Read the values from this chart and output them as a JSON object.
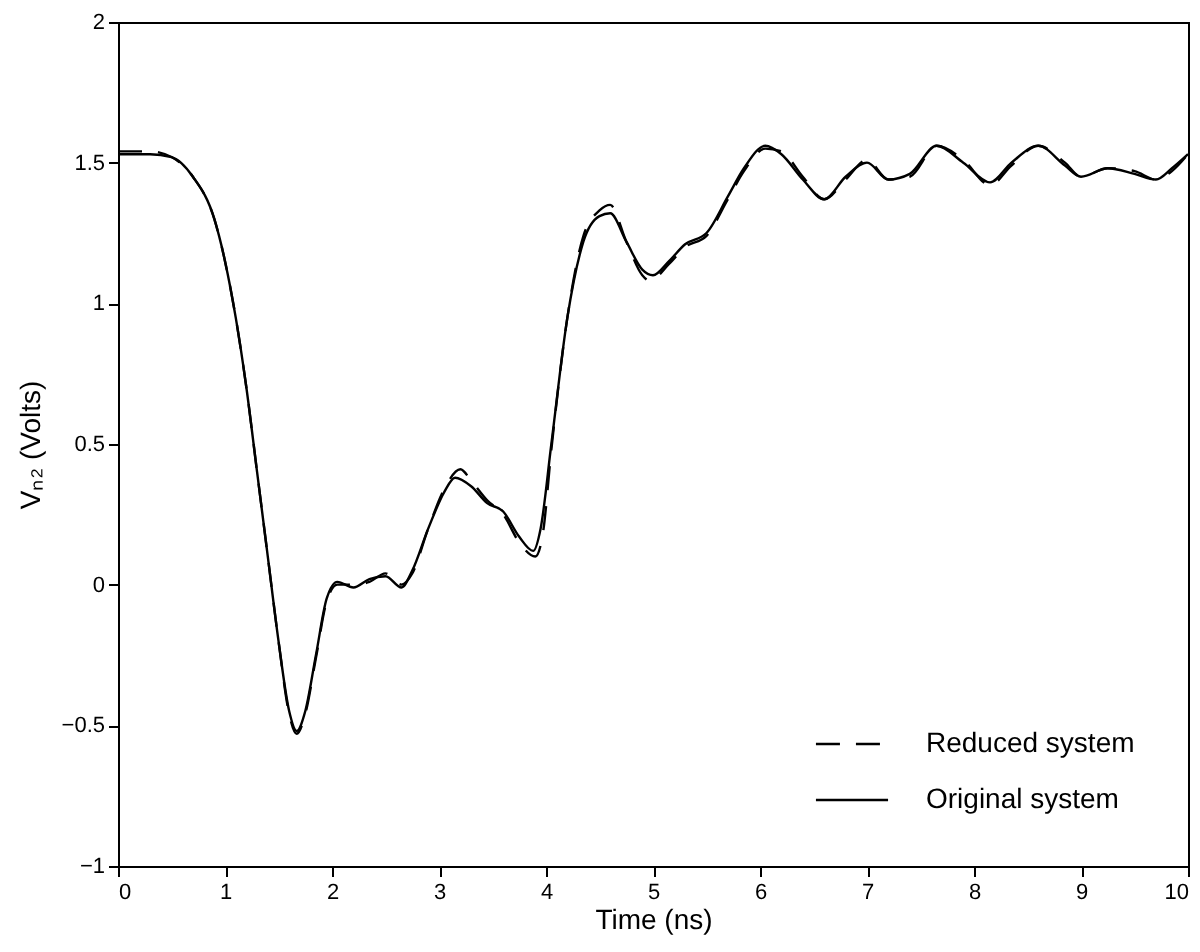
{
  "chart_data": {
    "type": "line",
    "xlabel": "Time (ns)",
    "ylabel": "Vₙ₂ (Volts)",
    "xlim": [
      0,
      10
    ],
    "ylim": [
      -1,
      2
    ],
    "xticks": [
      0,
      1,
      2,
      3,
      4,
      5,
      6,
      7,
      8,
      9,
      10
    ],
    "yticks": [
      -1,
      -0.5,
      0,
      0.5,
      1,
      1.5,
      2
    ],
    "grid": false,
    "legend": "bottom right",
    "series": [
      {
        "name": "Reduced system",
        "color": "#000000",
        "line_style": "dashed",
        "x": [
          0,
          0.3,
          0.5,
          0.7,
          0.9,
          1.0,
          1.1,
          1.2,
          1.3,
          1.4,
          1.5,
          1.6,
          1.67,
          1.75,
          1.85,
          1.95,
          2.05,
          2.2,
          2.35,
          2.5,
          2.65,
          2.75,
          2.9,
          3.05,
          3.2,
          3.3,
          3.45,
          3.6,
          3.75,
          3.9,
          3.97,
          4.05,
          4.2,
          4.35,
          4.5,
          4.6,
          4.75,
          4.9,
          4.97,
          5.15,
          5.3,
          5.5,
          5.7,
          5.85,
          6.05,
          6.2,
          6.4,
          6.6,
          6.8,
          7.0,
          7.2,
          7.4,
          7.65,
          7.9,
          8.15,
          8.35,
          8.6,
          8.85,
          9.0,
          9.25,
          9.5,
          9.7,
          9.85,
          10.0
        ],
        "values": [
          1.54,
          1.54,
          1.52,
          1.45,
          1.3,
          1.15,
          0.95,
          0.7,
          0.4,
          0.1,
          -0.2,
          -0.46,
          -0.53,
          -0.46,
          -0.26,
          -0.06,
          0.0,
          0.0,
          0.01,
          0.04,
          0.0,
          0.04,
          0.2,
          0.34,
          0.41,
          0.37,
          0.3,
          0.25,
          0.15,
          0.1,
          0.18,
          0.48,
          0.95,
          1.24,
          1.33,
          1.35,
          1.22,
          1.1,
          1.08,
          1.14,
          1.2,
          1.24,
          1.37,
          1.47,
          1.55,
          1.54,
          1.45,
          1.37,
          1.44,
          1.51,
          1.44,
          1.45,
          1.56,
          1.51,
          1.42,
          1.49,
          1.56,
          1.5,
          1.45,
          1.48,
          1.47,
          1.44,
          1.47,
          1.53
        ]
      },
      {
        "name": "Original system",
        "color": "#000000",
        "line_style": "solid",
        "x": [
          0,
          0.3,
          0.5,
          0.7,
          0.9,
          1.0,
          1.1,
          1.2,
          1.3,
          1.4,
          1.5,
          1.6,
          1.67,
          1.75,
          1.85,
          1.95,
          2.05,
          2.2,
          2.35,
          2.5,
          2.65,
          2.75,
          2.9,
          3.05,
          3.15,
          3.3,
          3.45,
          3.6,
          3.75,
          3.88,
          3.95,
          4.05,
          4.2,
          4.35,
          4.5,
          4.6,
          4.75,
          4.9,
          5.0,
          5.15,
          5.3,
          5.5,
          5.7,
          5.85,
          6.05,
          6.2,
          6.4,
          6.6,
          6.8,
          7.0,
          7.2,
          7.4,
          7.65,
          7.9,
          8.15,
          8.35,
          8.6,
          8.85,
          9.0,
          9.25,
          9.5,
          9.7,
          9.85,
          10.0
        ],
        "values": [
          1.53,
          1.53,
          1.52,
          1.45,
          1.3,
          1.15,
          0.95,
          0.7,
          0.4,
          0.1,
          -0.2,
          -0.45,
          -0.52,
          -0.45,
          -0.25,
          -0.05,
          0.01,
          -0.01,
          0.02,
          0.03,
          -0.01,
          0.05,
          0.2,
          0.33,
          0.38,
          0.35,
          0.29,
          0.26,
          0.17,
          0.12,
          0.2,
          0.5,
          0.95,
          1.22,
          1.31,
          1.32,
          1.22,
          1.12,
          1.1,
          1.15,
          1.21,
          1.25,
          1.38,
          1.48,
          1.56,
          1.53,
          1.44,
          1.37,
          1.45,
          1.5,
          1.44,
          1.46,
          1.56,
          1.5,
          1.43,
          1.5,
          1.56,
          1.49,
          1.45,
          1.48,
          1.46,
          1.44,
          1.48,
          1.53
        ]
      }
    ]
  }
}
